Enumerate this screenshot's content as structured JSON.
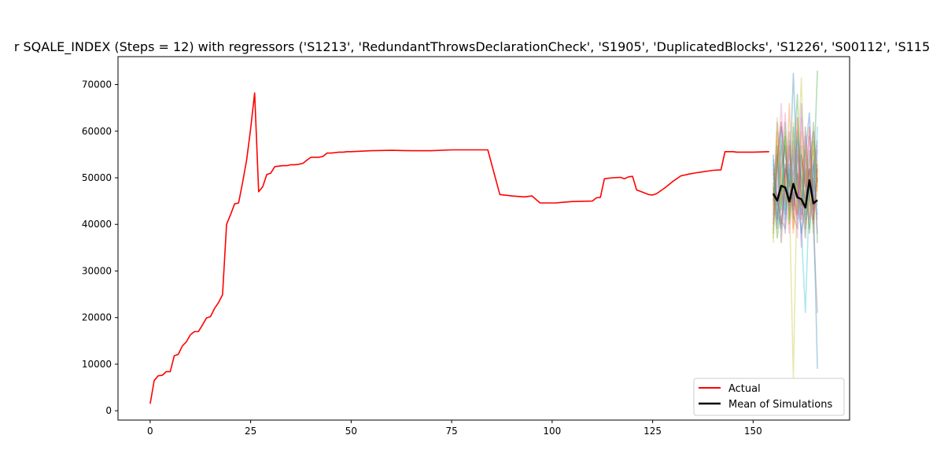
{
  "chart_data": {
    "type": "line",
    "title": "r SQALE_INDEX (Steps = 12) with regressors ('S1213', 'RedundantThrowsDeclarationCheck', 'S1905', 'DuplicatedBlocks', 'S1226', 'S00112', 'S115",
    "xlabel": "",
    "ylabel": "",
    "xlim": [
      -8,
      174
    ],
    "ylim": [
      -2000,
      76000
    ],
    "x_ticks": [
      0,
      25,
      50,
      75,
      100,
      125,
      150
    ],
    "x_tick_labels": [
      "0",
      "25",
      "50",
      "75",
      "100",
      "125",
      "150"
    ],
    "y_ticks": [
      0,
      10000,
      20000,
      30000,
      40000,
      50000,
      60000,
      70000
    ],
    "y_tick_labels": [
      "0",
      "10000",
      "20000",
      "30000",
      "40000",
      "50000",
      "60000",
      "70000"
    ],
    "grid": false,
    "legend": {
      "position": "lower-right",
      "entries": [
        "Actual",
        "Mean of Simulations"
      ]
    },
    "series": [
      {
        "name": "Actual",
        "color": "#ff0000",
        "x": [
          0,
          1,
          2,
          3,
          4,
          5,
          6,
          7,
          8,
          9,
          10,
          11,
          12,
          13,
          14,
          15,
          16,
          17,
          18,
          19,
          20,
          21,
          22,
          23,
          24,
          25,
          26,
          27,
          28,
          29,
          30,
          31,
          32,
          33,
          34,
          35,
          36,
          37,
          38,
          39,
          40,
          41,
          42,
          43,
          44,
          45,
          46,
          47,
          48,
          49,
          50,
          55,
          60,
          65,
          70,
          75,
          80,
          84,
          87,
          90,
          93,
          95,
          97,
          99,
          100,
          101,
          102,
          105,
          110,
          111,
          112,
          113,
          115,
          117,
          118,
          119,
          120,
          121,
          124,
          125,
          126,
          128,
          130,
          132,
          134,
          136,
          140,
          142,
          143,
          145,
          146,
          150,
          154
        ],
        "y": [
          1500,
          6500,
          7500,
          7600,
          8400,
          8400,
          11800,
          12100,
          13900,
          14800,
          16300,
          17000,
          17000,
          18400,
          19900,
          20200,
          21900,
          23200,
          24900,
          40000,
          42100,
          44400,
          44600,
          49000,
          53800,
          60500,
          68200,
          47000,
          48100,
          50700,
          51000,
          52400,
          52500,
          52600,
          52600,
          52800,
          52800,
          52900,
          53100,
          53800,
          54400,
          54400,
          54400,
          54600,
          55300,
          55300,
          55400,
          55500,
          55500,
          55600,
          55600,
          55800,
          55900,
          55800,
          55800,
          56000,
          56000,
          56000,
          46400,
          46100,
          45900,
          46100,
          44600,
          44600,
          44600,
          44600,
          44700,
          44900,
          45000,
          45700,
          45800,
          49800,
          50000,
          50100,
          49800,
          50200,
          50300,
          47400,
          46400,
          46300,
          46600,
          47800,
          49200,
          50400,
          50800,
          51100,
          51600,
          51700,
          55600,
          55600,
          55500,
          55500,
          55600
        ]
      },
      {
        "name": "Mean of Simulations",
        "color": "#000000",
        "x": [
          155,
          156,
          157,
          158,
          159,
          160,
          161,
          162,
          163,
          164,
          165,
          166
        ],
        "y": [
          46600,
          45100,
          48300,
          47900,
          44900,
          48700,
          45800,
          45400,
          43600,
          49500,
          44500,
          45200
        ]
      }
    ],
    "simulations": {
      "colors": [
        "#1f77b4",
        "#ff7f0e",
        "#2ca02c",
        "#d62728",
        "#9467bd",
        "#8c564b",
        "#e377c2",
        "#7f7f7f",
        "#bcbd22",
        "#17becf"
      ],
      "x": [
        155,
        156,
        157,
        158,
        159,
        160,
        161,
        162,
        163,
        164,
        165,
        166
      ],
      "series": [
        [
          42000,
          52000,
          61000,
          55000,
          48000,
          72500,
          49000,
          38000,
          44000,
          52000,
          46000,
          56000
        ],
        [
          47000,
          41000,
          58000,
          45000,
          51000,
          38000,
          60000,
          48000,
          54000,
          41000,
          50000,
          44000
        ],
        [
          38000,
          55000,
          43000,
          62000,
          40000,
          50000,
          45000,
          57000,
          39000,
          48000,
          58000,
          36000
        ],
        [
          51000,
          46000,
          40000,
          49000,
          57000,
          44000,
          63000,
          41000,
          47000,
          52000,
          43000,
          50000
        ],
        [
          44000,
          62000,
          49000,
          38000,
          53000,
          46000,
          41000,
          66000,
          48000,
          39000,
          52000,
          58000
        ],
        [
          49000,
          39000,
          52000,
          57000,
          43000,
          58000,
          47000,
          44000,
          61000,
          46000,
          40000,
          53000
        ],
        [
          41000,
          50000,
          66000,
          46000,
          38000,
          51000,
          56000,
          49000,
          42000,
          59000,
          47000,
          41000
        ],
        [
          53000,
          44000,
          47000,
          51000,
          60000,
          42000,
          39000,
          52000,
          56000,
          44000,
          62000,
          48000
        ],
        [
          36000,
          58000,
          44000,
          60000,
          46000,
          7000,
          52000,
          71500,
          43000,
          50000,
          38000,
          54000
        ],
        [
          46000,
          48000,
          57000,
          41000,
          50000,
          55000,
          44000,
          39000,
          21000,
          47000,
          53000,
          42000
        ],
        [
          55000,
          43000,
          39000,
          53000,
          45000,
          61000,
          49000,
          42000,
          55000,
          64000,
          45000,
          9000
        ],
        [
          43000,
          60000,
          51000,
          44000,
          66000,
          39000,
          46000,
          60000,
          40000,
          50000,
          56000,
          47000
        ],
        [
          48000,
          37000,
          45000,
          59000,
          41000,
          53000,
          68000,
          44000,
          52000,
          38000,
          49000,
          73000
        ],
        [
          40000,
          54000,
          62000,
          48000,
          44000,
          47000,
          42000,
          55000,
          48000,
          61000,
          41000,
          52000
        ],
        [
          52000,
          41000,
          48000,
          42000,
          55000,
          50000,
          58000,
          35000,
          59000,
          45000,
          54000,
          38000
        ],
        [
          45000,
          57000,
          36000,
          52000,
          49000,
          43000,
          51000,
          47000,
          37000,
          53000,
          60000,
          49000
        ],
        [
          39000,
          47000,
          53000,
          64000,
          42000,
          56000,
          37000,
          63000,
          51000,
          41000,
          47000,
          57000
        ],
        [
          50000,
          45000,
          41000,
          39000,
          58000,
          41000,
          55000,
          50000,
          45000,
          56000,
          39000,
          21000
        ],
        [
          37000,
          63000,
          46000,
          50000,
          40000,
          62000,
          43000,
          45000,
          57000,
          43000,
          58000,
          46000
        ],
        [
          54000,
          40000,
          60000,
          43000,
          52000,
          45000,
          59000,
          53000,
          41000,
          49000,
          44000,
          61000
        ]
      ]
    }
  }
}
